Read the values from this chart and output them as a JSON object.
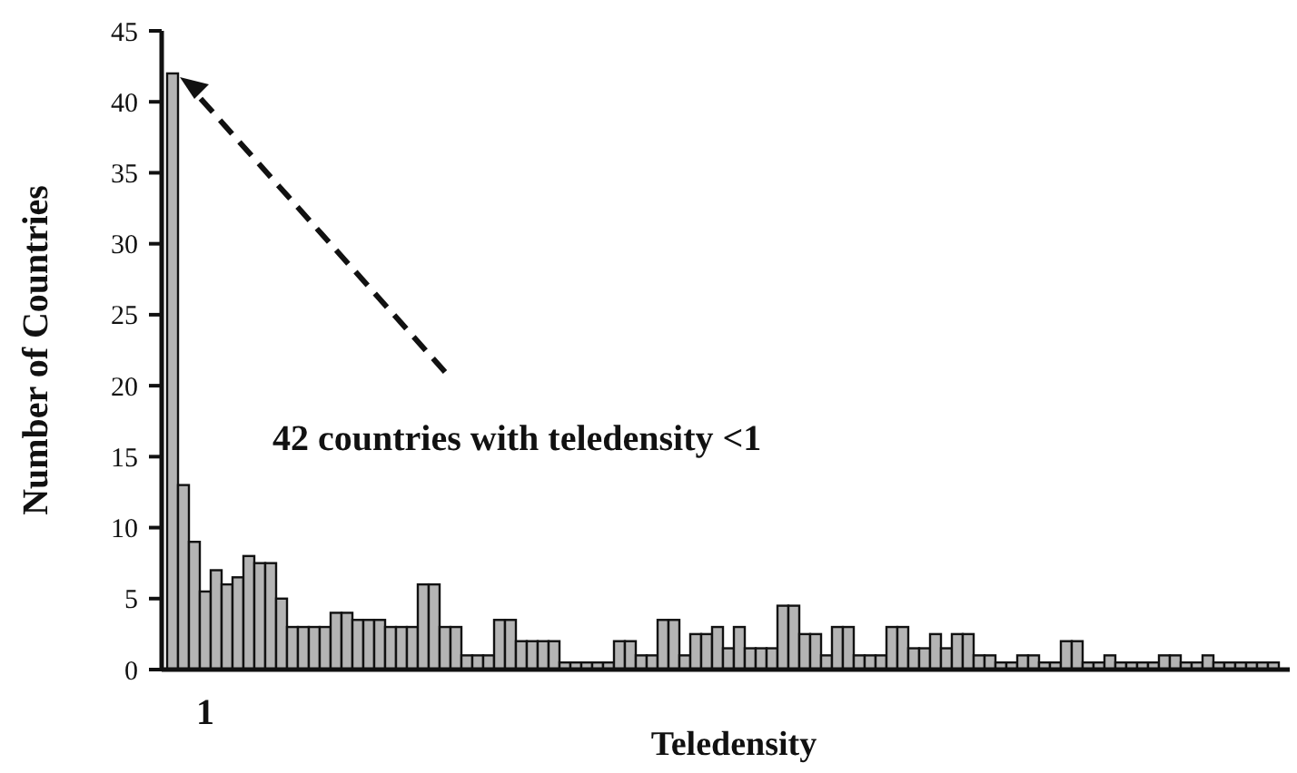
{
  "chart_data": {
    "type": "bar",
    "xlabel": "Teledensity",
    "ylabel": "Number of Countries",
    "categories": [
      null,
      null,
      null,
      "1",
      null,
      null,
      null,
      null,
      null,
      null,
      null,
      null,
      null,
      null,
      null,
      null,
      null,
      null,
      null,
      null,
      null,
      null,
      null,
      null,
      null,
      null,
      null,
      null,
      null,
      null,
      null,
      null,
      null,
      null,
      null,
      null,
      null,
      null,
      null,
      null,
      null,
      null,
      null,
      null,
      null,
      null,
      null,
      null,
      null,
      null,
      null,
      null,
      null,
      null,
      null,
      null,
      null,
      null,
      null,
      null,
      null,
      null,
      null,
      null,
      null,
      null,
      null,
      null,
      null,
      null,
      null,
      null,
      null,
      null,
      null,
      null,
      null,
      null,
      null,
      null,
      null,
      null,
      null,
      null,
      null,
      null,
      null,
      null,
      null,
      null,
      null,
      null,
      null,
      null,
      null,
      null,
      null,
      null,
      null,
      null,
      null,
      null
    ],
    "values": [
      42,
      13,
      9,
      5.5,
      7,
      6,
      6.5,
      8,
      7.5,
      7.5,
      5,
      3,
      3,
      3,
      3,
      4,
      4,
      3.5,
      3.5,
      3.5,
      3,
      3,
      3,
      6,
      6,
      3,
      3,
      1,
      1,
      1,
      3.5,
      3.5,
      2,
      2,
      2,
      2,
      0.5,
      0.5,
      0.5,
      0.5,
      0.5,
      2,
      2,
      1,
      1,
      3.5,
      3.5,
      1,
      2.5,
      2.5,
      3,
      1.5,
      3,
      1.5,
      1.5,
      1.5,
      4.5,
      4.5,
      2.5,
      2.5,
      1,
      3,
      3,
      1,
      1,
      1,
      3,
      3,
      1.5,
      1.5,
      2.5,
      1.5,
      2.5,
      2.5,
      1,
      1,
      0.5,
      0.5,
      1,
      1,
      0.5,
      0.5,
      2,
      2,
      0.5,
      0.5,
      1,
      0.5,
      0.5,
      0.5,
      0.5,
      1,
      1,
      0.5,
      0.5,
      1,
      0.5,
      0.5,
      0.5,
      0.5,
      0.5,
      0.5
    ],
    "color": "#b4b4b4",
    "ylim": [
      0,
      45
    ],
    "yticks": [
      0,
      5,
      10,
      15,
      20,
      25,
      30,
      35,
      40,
      45
    ],
    "annotations": [
      "42 countries with teledensity <1"
    ]
  }
}
